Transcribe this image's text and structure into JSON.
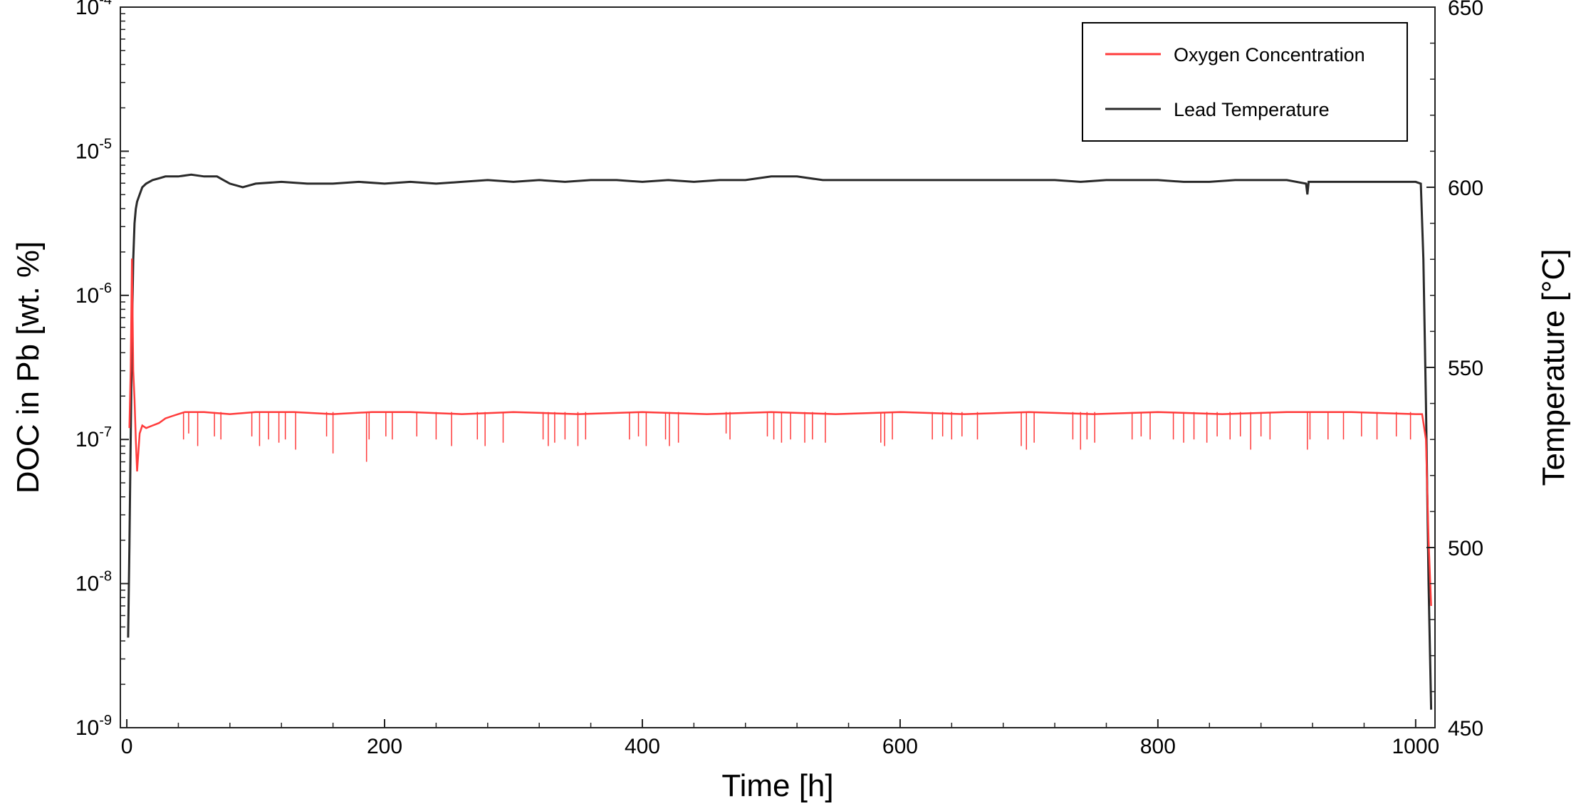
{
  "chart_data": {
    "type": "line",
    "xlabel": "Time [h]",
    "ylabel": "DOC in Pb [wt. %]",
    "y2label": "Temperature [°C]",
    "xlim": [
      -5,
      1015
    ],
    "ylim": [
      1e-09,
      0.0001
    ],
    "yscale": "log",
    "y2lim": [
      450,
      650
    ],
    "x_ticks": [
      "0",
      "200",
      "400",
      "600",
      "800",
      "1000"
    ],
    "y_ticks": [
      {
        "base": "10",
        "exp": "-9"
      },
      {
        "base": "10",
        "exp": "-8"
      },
      {
        "base": "10",
        "exp": "-7"
      },
      {
        "base": "10",
        "exp": "-6"
      },
      {
        "base": "10",
        "exp": "-5"
      },
      {
        "base": "10",
        "exp": "-4"
      }
    ],
    "y2_ticks": [
      "450",
      "500",
      "550",
      "600",
      "650"
    ],
    "grid": false,
    "legend_position": "top-right",
    "series": [
      {
        "name": "Oxygen Concentration",
        "axis": "left",
        "color": "#ff3b3b",
        "x": [
          2,
          3,
          4,
          5,
          6,
          7,
          8,
          10,
          12,
          15,
          20,
          25,
          30,
          35,
          40,
          45,
          60,
          80,
          100,
          130,
          160,
          190,
          220,
          260,
          300,
          350,
          400,
          450,
          500,
          550,
          600,
          650,
          700,
          750,
          800,
          850,
          900,
          950,
          1000,
          1005,
          1008,
          1010,
          1012
        ],
        "y": [
          1.2e-07,
          3e-07,
          1.8e-06,
          3e-07,
          1.9e-07,
          1e-07,
          6e-08,
          1.1e-07,
          1.25e-07,
          1.2e-07,
          1.25e-07,
          1.3e-07,
          1.4e-07,
          1.45e-07,
          1.5e-07,
          1.55e-07,
          1.55e-07,
          1.5e-07,
          1.55e-07,
          1.55e-07,
          1.5e-07,
          1.55e-07,
          1.55e-07,
          1.5e-07,
          1.55e-07,
          1.5e-07,
          1.55e-07,
          1.5e-07,
          1.55e-07,
          1.5e-07,
          1.55e-07,
          1.5e-07,
          1.55e-07,
          1.5e-07,
          1.55e-07,
          1.5e-07,
          1.55e-07,
          1.55e-07,
          1.5e-07,
          1.5e-07,
          1e-07,
          2e-08,
          7e-09
        ],
        "dips": [
          {
            "x": 44,
            "y": 1e-07
          },
          {
            "x": 48,
            "y": 1.1e-07
          },
          {
            "x": 55,
            "y": 9e-08
          },
          {
            "x": 68,
            "y": 1.05e-07
          },
          {
            "x": 73,
            "y": 1e-07
          },
          {
            "x": 97,
            "y": 1.05e-07
          },
          {
            "x": 103,
            "y": 9e-08
          },
          {
            "x": 110,
            "y": 1e-07
          },
          {
            "x": 118,
            "y": 9.5e-08
          },
          {
            "x": 123,
            "y": 1e-07
          },
          {
            "x": 131,
            "y": 8.5e-08
          },
          {
            "x": 155,
            "y": 1.05e-07
          },
          {
            "x": 160,
            "y": 8e-08
          },
          {
            "x": 186,
            "y": 7e-08
          },
          {
            "x": 188,
            "y": 1e-07
          },
          {
            "x": 201,
            "y": 1.05e-07
          },
          {
            "x": 206,
            "y": 1e-07
          },
          {
            "x": 225,
            "y": 1.05e-07
          },
          {
            "x": 240,
            "y": 1e-07
          },
          {
            "x": 252,
            "y": 9e-08
          },
          {
            "x": 272,
            "y": 1e-07
          },
          {
            "x": 278,
            "y": 9e-08
          },
          {
            "x": 292,
            "y": 9.5e-08
          },
          {
            "x": 323,
            "y": 1e-07
          },
          {
            "x": 327,
            "y": 9e-08
          },
          {
            "x": 332,
            "y": 9.5e-08
          },
          {
            "x": 340,
            "y": 1e-07
          },
          {
            "x": 350,
            "y": 9e-08
          },
          {
            "x": 356,
            "y": 1e-07
          },
          {
            "x": 390,
            "y": 1e-07
          },
          {
            "x": 397,
            "y": 1.05e-07
          },
          {
            "x": 403,
            "y": 9e-08
          },
          {
            "x": 418,
            "y": 1e-07
          },
          {
            "x": 421,
            "y": 9e-08
          },
          {
            "x": 428,
            "y": 9.5e-08
          },
          {
            "x": 465,
            "y": 1.1e-07
          },
          {
            "x": 468,
            "y": 1e-07
          },
          {
            "x": 497,
            "y": 1.05e-07
          },
          {
            "x": 502,
            "y": 1e-07
          },
          {
            "x": 508,
            "y": 9.5e-08
          },
          {
            "x": 515,
            "y": 1e-07
          },
          {
            "x": 526,
            "y": 9.5e-08
          },
          {
            "x": 532,
            "y": 1e-07
          },
          {
            "x": 542,
            "y": 9.5e-08
          },
          {
            "x": 585,
            "y": 9.5e-08
          },
          {
            "x": 588,
            "y": 9e-08
          },
          {
            "x": 594,
            "y": 1e-07
          },
          {
            "x": 625,
            "y": 1e-07
          },
          {
            "x": 633,
            "y": 1.05e-07
          },
          {
            "x": 640,
            "y": 1e-07
          },
          {
            "x": 648,
            "y": 1.05e-07
          },
          {
            "x": 660,
            "y": 1e-07
          },
          {
            "x": 694,
            "y": 9e-08
          },
          {
            "x": 698,
            "y": 8.5e-08
          },
          {
            "x": 704,
            "y": 9.5e-08
          },
          {
            "x": 734,
            "y": 1e-07
          },
          {
            "x": 740,
            "y": 8.5e-08
          },
          {
            "x": 745,
            "y": 1e-07
          },
          {
            "x": 751,
            "y": 9.5e-08
          },
          {
            "x": 780,
            "y": 1e-07
          },
          {
            "x": 787,
            "y": 1.05e-07
          },
          {
            "x": 794,
            "y": 1e-07
          },
          {
            "x": 812,
            "y": 1e-07
          },
          {
            "x": 820,
            "y": 9.5e-08
          },
          {
            "x": 828,
            "y": 1e-07
          },
          {
            "x": 838,
            "y": 9.5e-08
          },
          {
            "x": 846,
            "y": 1.05e-07
          },
          {
            "x": 856,
            "y": 1e-07
          },
          {
            "x": 864,
            "y": 1.05e-07
          },
          {
            "x": 872,
            "y": 8.5e-08
          },
          {
            "x": 880,
            "y": 1.05e-07
          },
          {
            "x": 887,
            "y": 1e-07
          },
          {
            "x": 916,
            "y": 8.5e-08
          },
          {
            "x": 918,
            "y": 1e-07
          },
          {
            "x": 932,
            "y": 1e-07
          },
          {
            "x": 944,
            "y": 1e-07
          },
          {
            "x": 958,
            "y": 1.05e-07
          },
          {
            "x": 970,
            "y": 1e-07
          },
          {
            "x": 985,
            "y": 1.05e-07
          },
          {
            "x": 996,
            "y": 1e-07
          }
        ]
      },
      {
        "name": "Lead Temperature",
        "axis": "right",
        "color": "#2a2a2a",
        "x": [
          1,
          2,
          3,
          4,
          5,
          6,
          7,
          8,
          10,
          12,
          15,
          20,
          25,
          30,
          40,
          50,
          60,
          70,
          75,
          80,
          90,
          100,
          120,
          140,
          160,
          180,
          200,
          220,
          240,
          260,
          280,
          300,
          320,
          340,
          360,
          380,
          400,
          420,
          440,
          460,
          480,
          500,
          520,
          540,
          560,
          580,
          600,
          620,
          640,
          660,
          680,
          700,
          720,
          740,
          760,
          780,
          800,
          820,
          840,
          860,
          880,
          900,
          915,
          916,
          917,
          920,
          940,
          960,
          980,
          1000,
          1004,
          1006,
          1008,
          1010,
          1012
        ],
        "y": [
          475,
          500,
          530,
          560,
          580,
          590,
          594,
          596,
          598,
          600,
          601,
          602,
          602.5,
          603,
          603,
          603.5,
          603,
          603,
          602,
          601,
          600,
          601,
          601.5,
          601,
          601,
          601.5,
          601,
          601.5,
          601,
          601.5,
          602,
          601.5,
          602,
          601.5,
          602,
          602,
          601.5,
          602,
          601.5,
          602,
          602,
          603,
          603,
          602,
          602,
          602,
          602,
          602,
          602,
          602,
          602,
          602,
          602,
          601.5,
          602,
          602,
          602,
          601.5,
          601.5,
          602,
          602,
          602,
          601,
          598,
          601.5,
          601.5,
          601.5,
          601.5,
          601.5,
          601.5,
          601,
          580,
          540,
          490,
          455
        ]
      }
    ]
  }
}
